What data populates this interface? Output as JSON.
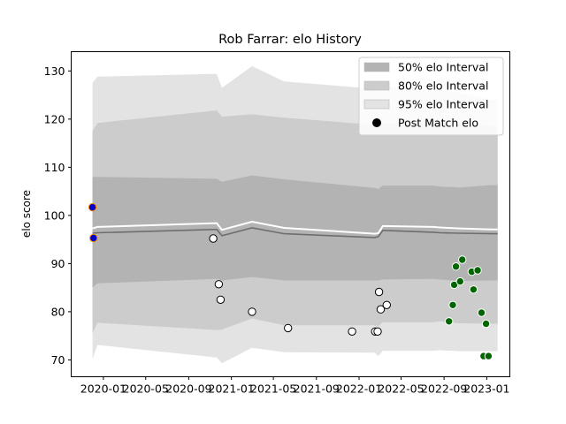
{
  "chart_data": {
    "type": "line",
    "title": "Rob Farrar: elo History",
    "xlabel": "",
    "ylabel": "elo score",
    "xlim": [
      "2019-10-01",
      "2023-03-08"
    ],
    "ylim": [
      66.5,
      134
    ],
    "x_ticks": [
      "2020-01",
      "2020-05",
      "2020-09",
      "2021-01",
      "2021-05",
      "2021-09",
      "2022-01",
      "2022-05",
      "2022-09",
      "2023-01"
    ],
    "y_ticks": [
      70,
      80,
      90,
      100,
      110,
      120,
      130
    ],
    "grid": false,
    "legend_position": "top-right",
    "legend": [
      {
        "label": "50% elo Interval",
        "color": "#b3b3b3",
        "kind": "patch"
      },
      {
        "label": "80% elo Interval",
        "color": "#cccccc",
        "kind": "patch"
      },
      {
        "label": "95% elo Interval",
        "color": "#e3e3e3",
        "kind": "patch"
      },
      {
        "label": "Post Match elo",
        "color": "#000000",
        "kind": "marker"
      }
    ],
    "bands": {
      "x": [
        "2019-12-01",
        "2019-12-15",
        "2020-11-20",
        "2020-12-05",
        "2021-03-01",
        "2021-06-01",
        "2022-02-15",
        "2022-02-25",
        "2022-03-10",
        "2022-08-01",
        "2022-08-20",
        "2022-10-15",
        "2023-01-15",
        "2023-01-20",
        "2023-02-01"
      ],
      "p95_upper": [
        127.5,
        128.8,
        129.4,
        126.5,
        131.0,
        127.8,
        126.3,
        125.7,
        127.0,
        125.8,
        126.2,
        125.5,
        124.0,
        124.0,
        124.0
      ],
      "p95_lower": [
        70.2,
        73.1,
        70.5,
        69.3,
        72.5,
        71.6,
        71.5,
        70.8,
        71.9,
        71.9,
        72.0,
        71.8,
        71.8,
        71.8,
        71.8
      ],
      "p80_upper": [
        117.5,
        119.2,
        121.8,
        120.5,
        121.0,
        120.3,
        118.8,
        118.4,
        119.0,
        119.2,
        119.0,
        119.0,
        118.5,
        118.5,
        118.5
      ],
      "p80_lower": [
        75.5,
        77.7,
        76.2,
        76.3,
        78.6,
        77.2,
        77.2,
        77.0,
        77.8,
        77.8,
        78.0,
        77.6,
        77.5,
        77.5,
        77.5
      ],
      "p50_upper": [
        108.0,
        108.0,
        107.6,
        107.0,
        108.3,
        107.5,
        105.7,
        105.5,
        106.2,
        106.2,
        106.0,
        105.8,
        106.3,
        106.3,
        106.3
      ],
      "p50_lower": [
        85.0,
        85.9,
        86.8,
        86.5,
        87.2,
        86.5,
        86.5,
        86.5,
        86.7,
        86.8,
        86.7,
        86.4,
        86.5,
        86.5,
        86.5
      ]
    },
    "mean_line": {
      "x": [
        "2019-12-01",
        "2019-12-15",
        "2020-11-20",
        "2020-12-05",
        "2021-03-01",
        "2021-06-01",
        "2022-02-15",
        "2022-02-25",
        "2022-03-10",
        "2022-08-01",
        "2022-08-20",
        "2022-10-15",
        "2023-01-15",
        "2023-02-01"
      ],
      "y": [
        96.3,
        96.4,
        97.1,
        95.8,
        97.4,
        96.2,
        95.4,
        95.6,
        96.9,
        96.5,
        96.4,
        96.3,
        96.2,
        96.2
      ]
    },
    "median_line": {
      "x": [
        "2019-12-01",
        "2019-12-15",
        "2020-11-20",
        "2020-12-05",
        "2021-03-01",
        "2021-06-01",
        "2022-02-15",
        "2022-02-25",
        "2022-03-10",
        "2022-08-01",
        "2022-08-20",
        "2022-10-15",
        "2023-01-15",
        "2023-02-01"
      ],
      "y": [
        97.3,
        97.6,
        98.4,
        97.0,
        98.7,
        97.4,
        96.2,
        96.3,
        97.8,
        97.6,
        97.5,
        97.3,
        97.1,
        97.1
      ]
    },
    "series": [
      {
        "name": "Post Match elo",
        "points": [
          {
            "x": "2019-12-01",
            "y": 101.7,
            "fill": "#0000cc",
            "edge": "#ff8c00"
          },
          {
            "x": "2019-12-04",
            "y": 95.3,
            "fill": "#0000cc",
            "edge": "#ff8c00"
          },
          {
            "x": "2020-11-10",
            "y": 95.2,
            "fill": "#ffffff",
            "edge": "#000000"
          },
          {
            "x": "2020-11-26",
            "y": 85.7,
            "fill": "#ffffff",
            "edge": "#000000"
          },
          {
            "x": "2020-12-01",
            "y": 82.5,
            "fill": "#ffffff",
            "edge": "#000000"
          },
          {
            "x": "2021-03-01",
            "y": 80.0,
            "fill": "#ffffff",
            "edge": "#000000"
          },
          {
            "x": "2021-06-12",
            "y": 76.6,
            "fill": "#ffffff",
            "edge": "#000000"
          },
          {
            "x": "2021-12-12",
            "y": 75.9,
            "fill": "#ffffff",
            "edge": "#000000"
          },
          {
            "x": "2022-02-16",
            "y": 75.9,
            "fill": "#ffffff",
            "edge": "#000000"
          },
          {
            "x": "2022-02-23",
            "y": 75.9,
            "fill": "#ffffff",
            "edge": "#000000"
          },
          {
            "x": "2022-02-27",
            "y": 84.1,
            "fill": "#ffffff",
            "edge": "#000000"
          },
          {
            "x": "2022-03-04",
            "y": 80.5,
            "fill": "#ffffff",
            "edge": "#000000"
          },
          {
            "x": "2022-03-21",
            "y": 81.4,
            "fill": "#ffffff",
            "edge": "#000000"
          },
          {
            "x": "2022-09-15",
            "y": 78.0,
            "fill": "#006400",
            "edge": "#ffffff"
          },
          {
            "x": "2022-09-26",
            "y": 81.4,
            "fill": "#006400",
            "edge": "#ffffff"
          },
          {
            "x": "2022-09-30",
            "y": 85.6,
            "fill": "#006400",
            "edge": "#ffffff"
          },
          {
            "x": "2022-10-05",
            "y": 89.4,
            "fill": "#006400",
            "edge": "#ffffff"
          },
          {
            "x": "2022-10-17",
            "y": 86.3,
            "fill": "#006400",
            "edge": "#ffffff"
          },
          {
            "x": "2022-10-23",
            "y": 90.8,
            "fill": "#006400",
            "edge": "#ffffff"
          },
          {
            "x": "2022-11-19",
            "y": 88.3,
            "fill": "#006400",
            "edge": "#ffffff"
          },
          {
            "x": "2022-11-24",
            "y": 84.6,
            "fill": "#006400",
            "edge": "#ffffff"
          },
          {
            "x": "2022-12-06",
            "y": 88.6,
            "fill": "#006400",
            "edge": "#ffffff"
          },
          {
            "x": "2022-12-17",
            "y": 79.8,
            "fill": "#006400",
            "edge": "#ffffff"
          },
          {
            "x": "2022-12-23",
            "y": 70.8,
            "fill": "#006400",
            "edge": "#ffffff"
          },
          {
            "x": "2022-12-30",
            "y": 77.5,
            "fill": "#006400",
            "edge": "#ffffff"
          },
          {
            "x": "2023-01-06",
            "y": 70.8,
            "fill": "#006400",
            "edge": "#ffffff"
          }
        ]
      }
    ]
  }
}
